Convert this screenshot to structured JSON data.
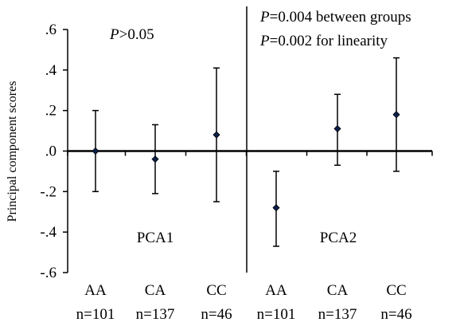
{
  "chart_data": {
    "type": "scatter",
    "ylabel": "Principal component scores",
    "ylim": [
      -0.6,
      0.6
    ],
    "yticks": [
      0.6,
      0.4,
      0.2,
      0.0,
      -0.2,
      -0.4,
      -0.6
    ],
    "ytick_labels": [
      ".6",
      ".4",
      ".2",
      ".0",
      "-.2",
      "-.4",
      "-.6"
    ],
    "grid": false,
    "panels": [
      {
        "label": "PCA1",
        "annotation": [
          "P>0.05"
        ],
        "points": [
          {
            "category": "AA",
            "n_label": "n=101",
            "mean": 0.0,
            "lower": -0.2,
            "upper": 0.2
          },
          {
            "category": "CA",
            "n_label": "n=137",
            "mean": -0.04,
            "lower": -0.21,
            "upper": 0.13
          },
          {
            "category": "CC",
            "n_label": "n=46",
            "mean": 0.08,
            "lower": -0.25,
            "upper": 0.41
          }
        ]
      },
      {
        "label": "PCA2",
        "annotation": [
          "P=0.004 between groups",
          "P=0.002 for linearity"
        ],
        "points": [
          {
            "category": "AA",
            "n_label": "n=101",
            "mean": -0.28,
            "lower": -0.47,
            "upper": -0.1
          },
          {
            "category": "CA",
            "n_label": "n=137",
            "mean": 0.11,
            "lower": -0.07,
            "upper": 0.28
          },
          {
            "category": "CC",
            "n_label": "n=46",
            "mean": 0.18,
            "lower": -0.1,
            "upper": 0.46
          }
        ]
      }
    ]
  }
}
